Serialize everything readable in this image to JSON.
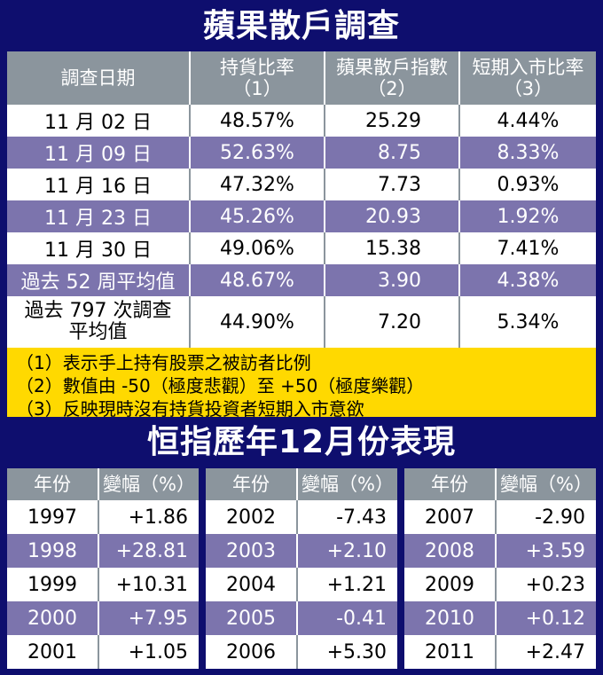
{
  "survey": {
    "title": "蘋果散戶調查",
    "headers": [
      {
        "line1": "調查日期",
        "line2": ""
      },
      {
        "line1": "持貨比率",
        "line2": "（1）"
      },
      {
        "line1": "蘋果散戶指數",
        "line2": "（2）"
      },
      {
        "line1": "短期入市比率",
        "line2": "（3）"
      }
    ],
    "rows": [
      {
        "date": "11 月 02 日",
        "holding": "48.57%",
        "index": "25.29",
        "entry": "4.44%"
      },
      {
        "date": "11 月 09 日",
        "holding": "52.63%",
        "index": "8.75",
        "entry": "8.33%"
      },
      {
        "date": "11 月 16 日",
        "holding": "47.32%",
        "index": "7.73",
        "entry": "0.93%"
      },
      {
        "date": "11 月 23 日",
        "holding": "45.26%",
        "index": "20.93",
        "entry": "1.92%"
      },
      {
        "date": "11 月 30 日",
        "holding": "49.06%",
        "index": "15.38",
        "entry": "7.41%"
      },
      {
        "date": "過去 52 周平均值",
        "holding": "48.67%",
        "index": "3.90",
        "entry": "4.38%"
      }
    ],
    "last_row": {
      "date_line1": "過去 797 次調查",
      "date_line2": "平均值",
      "holding": "44.90%",
      "index": "7.20",
      "entry": "5.34%"
    },
    "notes": [
      "（1）表示手上持有股票之被訪者比例",
      "（2）數值由 -50（極度悲觀）至 +50（極度樂觀）",
      "（3）反映現時沒有持貨投資者短期入市意欲"
    ]
  },
  "hsi": {
    "title": "恒指歷年12月份表現",
    "header_year": "年份",
    "header_change": "變幅（%）",
    "groups": [
      [
        {
          "year": "1997",
          "change": "+1.86"
        },
        {
          "year": "1998",
          "change": "+28.81"
        },
        {
          "year": "1999",
          "change": "+10.31"
        },
        {
          "year": "2000",
          "change": "+7.95"
        },
        {
          "year": "2001",
          "change": "+1.05"
        }
      ],
      [
        {
          "year": "2002",
          "change": "-7.43"
        },
        {
          "year": "2003",
          "change": "+2.10"
        },
        {
          "year": "2004",
          "change": "+1.21"
        },
        {
          "year": "2005",
          "change": "-0.41"
        },
        {
          "year": "2006",
          "change": "+5.30"
        }
      ],
      [
        {
          "year": "2007",
          "change": "-2.90"
        },
        {
          "year": "2008",
          "change": "+3.59"
        },
        {
          "year": "2009",
          "change": "+0.23"
        },
        {
          "year": "2010",
          "change": "+0.12"
        },
        {
          "year": "2011",
          "change": "+2.47"
        }
      ]
    ]
  },
  "colors": {
    "background": "#0e0e6e",
    "header": "#8b959d",
    "stripe": "#7c74ad",
    "notes": "#ffd900"
  }
}
